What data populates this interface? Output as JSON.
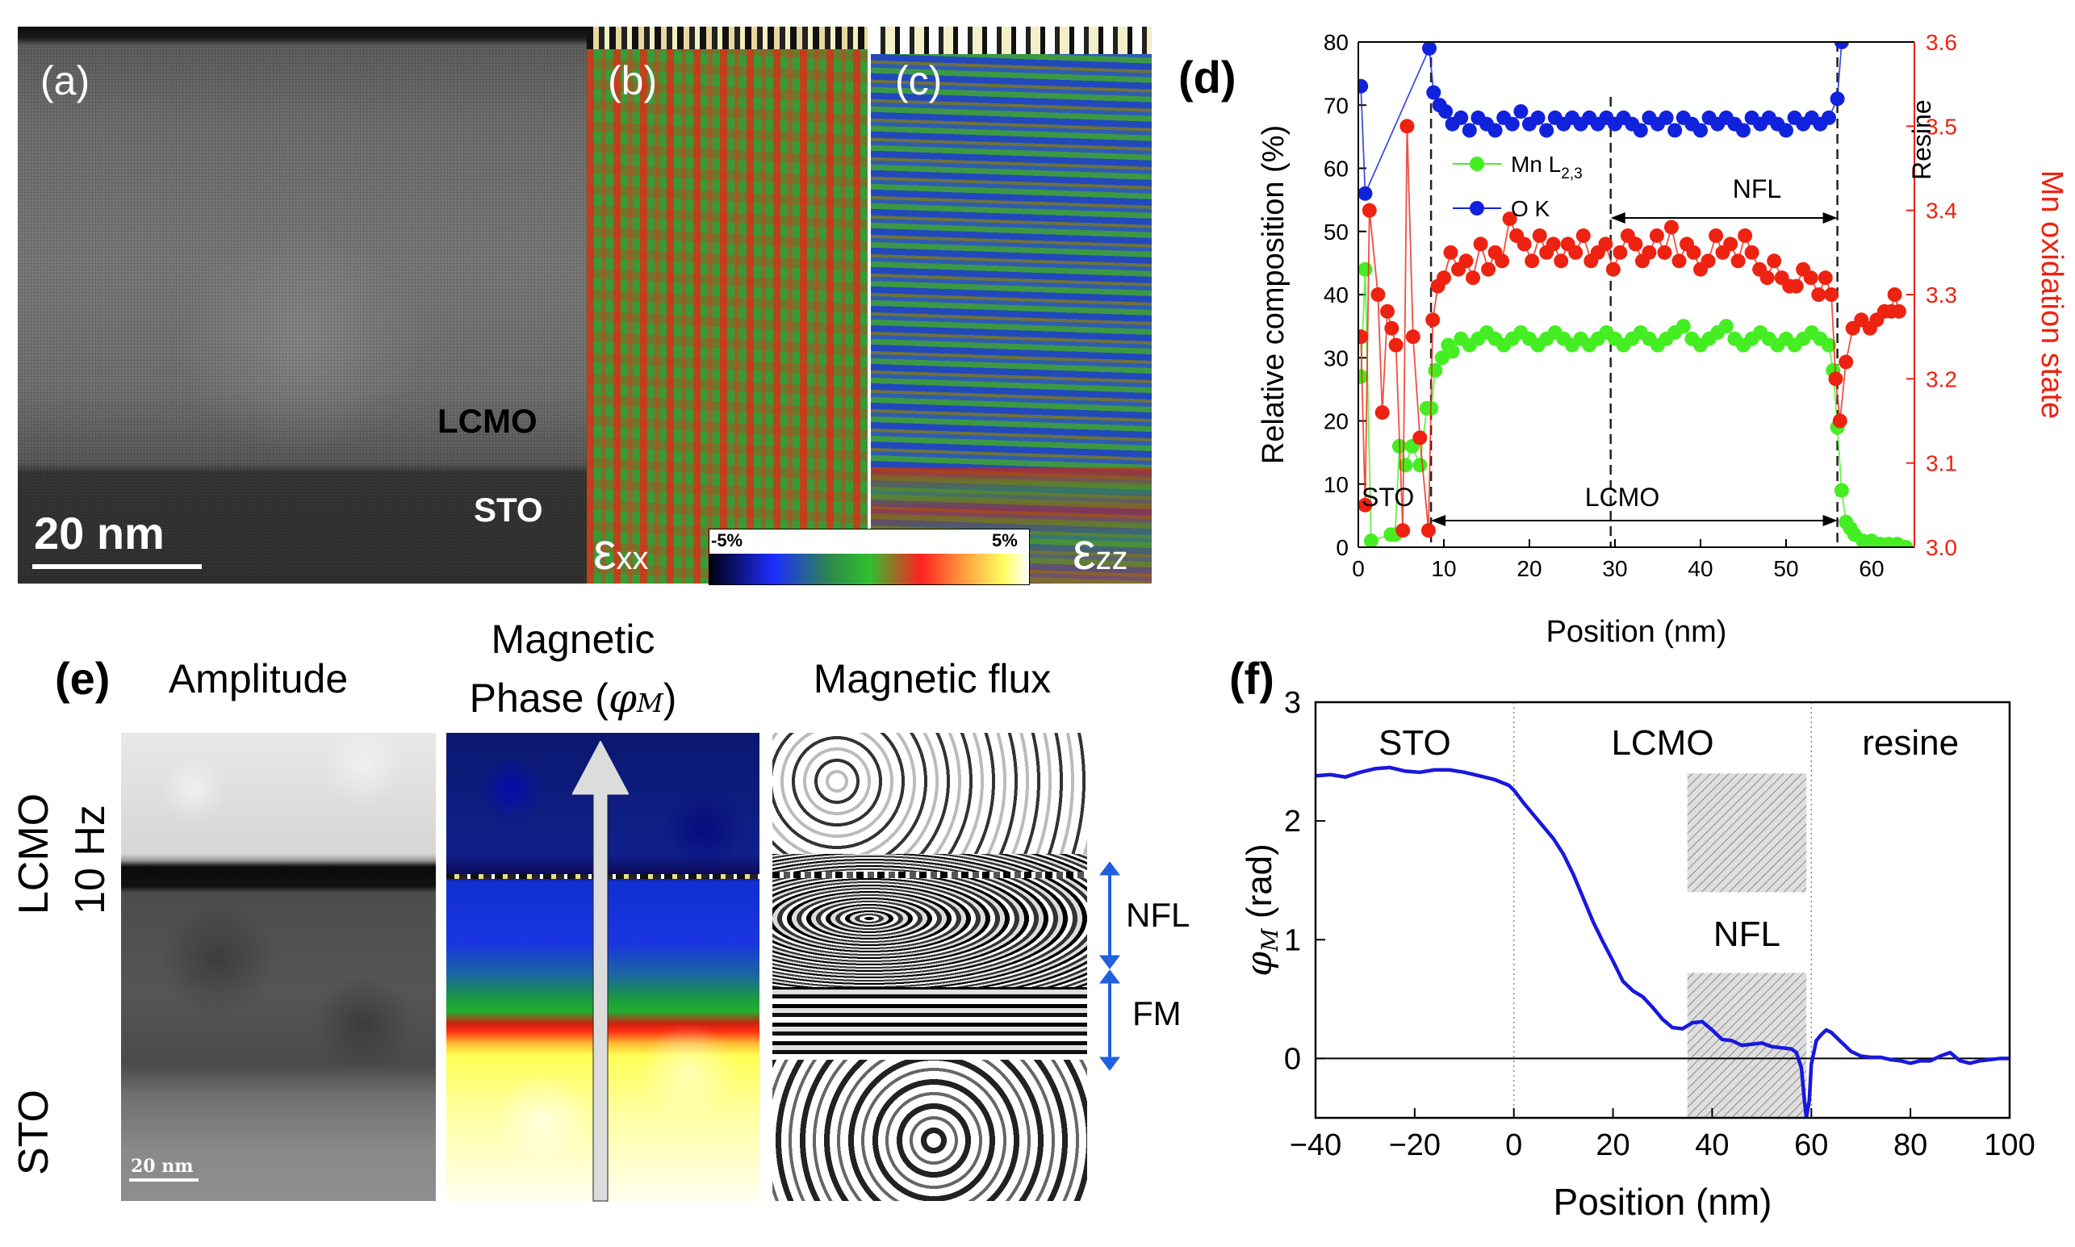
{
  "panel_a": {
    "letter": "(a)",
    "label_film": "LCMO",
    "label_sub": "STO",
    "scalebar": "20 nm"
  },
  "panel_b": {
    "letter": "(b)",
    "strain_symbol": "ε",
    "strain_sub": "xx"
  },
  "panel_c": {
    "letter": "(c)",
    "strain_symbol": "ε",
    "strain_sub": "zz"
  },
  "colorbar": {
    "min_label": "-5%",
    "max_label": "5%"
  },
  "panel_d_letter": "(d)",
  "panel_e": {
    "letter": "(e)",
    "amplitude_title": "Amplitude",
    "phase_title_line1": "Magnetic",
    "phase_title_line2": "Phase (",
    "phase_symbol": "φ",
    "phase_sub": "M",
    "phase_close": ")",
    "flux_title": "Magnetic flux",
    "side_label_lcmo": "LCMO",
    "side_label_hz": "10 Hz",
    "side_label_sto": "STO",
    "scalebar": "20 nm",
    "nfl_label": "NFL",
    "fm_label": "FM"
  },
  "panel_f_letter": "(f)",
  "chart_data": [
    {
      "id": "panel-d",
      "type": "scatter",
      "xlabel": "Position (nm)",
      "ylabel": "Relative composition (%)",
      "y2label": "Mn oxidation state",
      "xlim": [
        0,
        65
      ],
      "ylim": [
        0,
        80
      ],
      "y2lim": [
        3.0,
        3.6
      ],
      "xticks": [
        0,
        10,
        20,
        30,
        40,
        50,
        60
      ],
      "yticks": [
        0,
        10,
        20,
        30,
        40,
        50,
        60,
        70,
        80
      ],
      "y2ticks": [
        3.0,
        3.1,
        3.2,
        3.3,
        3.4,
        3.5,
        3.6
      ],
      "legend": [
        {
          "name": "Mn L",
          "sub": "2,3",
          "color": "#44ee22"
        },
        {
          "name": "O K",
          "sub": "",
          "color": "#1122dd"
        }
      ],
      "annotations": {
        "sto": "STO",
        "lcmo": "LCMO",
        "nfl": "NFL",
        "resine": "Resine",
        "dashed_x": [
          8.5,
          29.5,
          56
        ]
      },
      "series": [
        {
          "name": "O K",
          "axis": "left",
          "color": "#1122dd",
          "x": [
            0.3,
            0.8,
            8.3,
            8.8,
            9.5,
            10.2,
            11,
            12,
            13,
            14,
            15,
            16,
            17,
            18,
            19,
            20,
            21,
            22,
            23,
            24,
            25,
            26,
            27,
            28,
            29,
            30,
            31,
            32,
            33,
            34,
            35,
            36,
            37,
            38,
            39,
            40,
            41,
            42,
            43,
            44,
            45,
            46,
            47,
            48,
            49,
            50,
            51,
            52,
            53,
            54,
            55,
            56,
            56.5
          ],
          "y": [
            73,
            56,
            79,
            72,
            70,
            69,
            67,
            68,
            66,
            68,
            67,
            66,
            68,
            67,
            69,
            67,
            68,
            66,
            68,
            67,
            68,
            67,
            68,
            67,
            68,
            67,
            68,
            67,
            66,
            68,
            67,
            68,
            66,
            68,
            67,
            66,
            68,
            67,
            68,
            67,
            66,
            68,
            67,
            68,
            67,
            66,
            68,
            67,
            68,
            67,
            68,
            71,
            80
          ]
        },
        {
          "name": "Mn L2,3",
          "axis": "left",
          "color": "#44ee22",
          "x": [
            0.3,
            0.8,
            1.5,
            3.8,
            4.3,
            4.8,
            5.5,
            6.3,
            7.2,
            8,
            8.5,
            9,
            9.8,
            10.5,
            11,
            12,
            13,
            14,
            15,
            16,
            17,
            18,
            19,
            20,
            21,
            22,
            23,
            24,
            25,
            26,
            27,
            28,
            29,
            30,
            31,
            32,
            33,
            34,
            35,
            36,
            37,
            38,
            39,
            40,
            41,
            42,
            43,
            44,
            45,
            46,
            47,
            48,
            49,
            50,
            51,
            52,
            53,
            54,
            55,
            55.5,
            56,
            56.5,
            57,
            57.5,
            58,
            59,
            60,
            61,
            62,
            63,
            64
          ],
          "y": [
            27,
            44,
            1,
            2,
            2,
            16,
            13,
            16,
            13,
            22,
            22,
            28,
            30,
            32,
            31,
            33,
            32,
            33,
            34,
            33,
            32,
            33,
            34,
            33,
            32,
            33,
            34,
            33,
            32,
            33,
            32,
            33,
            34,
            33,
            32,
            33,
            34,
            33,
            32,
            33,
            34,
            35,
            33,
            32,
            33,
            34,
            35,
            33,
            32,
            33,
            34,
            33,
            32,
            33,
            32,
            33,
            34,
            33,
            32,
            28,
            19,
            9,
            4,
            3,
            2,
            1,
            1,
            0.5,
            0.5,
            0.5,
            0
          ]
        },
        {
          "name": "Mn oxidation state",
          "axis": "right",
          "color": "#ee2211",
          "x": [
            0.3,
            0.8,
            1.3,
            2.3,
            2.8,
            3.4,
            3.9,
            4.4,
            5.2,
            5.7,
            6.4,
            7.2,
            8.2,
            8.7,
            9.3,
            10,
            10.8,
            11.7,
            12.6,
            13.4,
            14.3,
            15.2,
            16,
            16.8,
            17.7,
            18.5,
            19.4,
            20.3,
            21.2,
            22,
            22.8,
            23.7,
            24.5,
            25.4,
            26.3,
            27.2,
            28,
            28.9,
            29.8,
            30.6,
            31.5,
            32.4,
            33.2,
            34,
            34.9,
            35.8,
            36.6,
            37.5,
            38.4,
            39.2,
            40,
            40.9,
            41.8,
            42.6,
            43.5,
            44.4,
            45.2,
            46,
            46.9,
            47.8,
            48.6,
            49.5,
            50.4,
            51.2,
            52,
            52.9,
            53.8,
            54.6,
            55.3,
            55.8,
            56.3,
            57,
            57.8,
            58.8,
            59.8,
            60.6,
            61.5,
            62.3,
            62.7,
            63.2
          ],
          "y": [
            3.25,
            3.05,
            3.4,
            3.3,
            3.16,
            3.28,
            3.26,
            3.24,
            3.02,
            3.5,
            3.25,
            3.13,
            3.02,
            3.27,
            3.31,
            3.32,
            3.35,
            3.33,
            3.34,
            3.32,
            3.36,
            3.33,
            3.35,
            3.34,
            3.39,
            3.37,
            3.36,
            3.34,
            3.37,
            3.35,
            3.36,
            3.34,
            3.36,
            3.35,
            3.37,
            3.34,
            3.35,
            3.36,
            3.33,
            3.35,
            3.37,
            3.36,
            3.34,
            3.35,
            3.37,
            3.35,
            3.38,
            3.34,
            3.36,
            3.35,
            3.33,
            3.34,
            3.37,
            3.35,
            3.36,
            3.34,
            3.37,
            3.35,
            3.33,
            3.32,
            3.34,
            3.32,
            3.31,
            3.31,
            3.33,
            3.32,
            3.3,
            3.32,
            3.3,
            3.2,
            3.15,
            3.22,
            3.26,
            3.27,
            3.26,
            3.27,
            3.28,
            3.28,
            3.3,
            3.28
          ]
        }
      ]
    },
    {
      "id": "panel-f",
      "type": "line",
      "xlabel": "Position (nm)",
      "ylabel_symbol": "φ",
      "ylabel_sub": "M",
      "ylabel_unit": "(rad)",
      "xlim": [
        -40,
        100
      ],
      "ylim": [
        -0.5,
        3
      ],
      "xticks": [
        -40,
        -20,
        0,
        20,
        40,
        60,
        80,
        100
      ],
      "yticks": [
        0,
        1,
        2,
        3
      ],
      "region_labels": [
        "STO",
        "LCMO",
        "resine"
      ],
      "region_bounds": [
        0,
        60
      ],
      "nfl_label": "NFL",
      "hatched_regions": [
        {
          "x0": 35,
          "x1": 59,
          "y0": 1.4,
          "y1": 2.4
        },
        {
          "x0": 35,
          "x1": 59,
          "y0": -0.5,
          "y1": 0.72
        }
      ],
      "series": [
        {
          "name": "φM",
          "color": "#1818dd",
          "x": [
            -40,
            -37,
            -34,
            -31,
            -28,
            -25,
            -22,
            -19,
            -16,
            -13,
            -10,
            -7,
            -4,
            -1,
            0,
            2,
            4,
            6,
            8,
            10,
            12,
            14,
            16,
            18,
            20,
            22,
            24,
            26,
            28,
            30,
            32,
            34,
            36,
            38,
            40,
            42,
            44,
            46,
            48,
            50,
            52,
            54,
            56,
            57,
            58,
            58.6,
            59,
            59.6,
            60,
            61,
            62,
            63,
            64,
            66,
            68,
            70,
            72,
            74,
            76,
            78,
            80,
            82,
            84,
            86,
            88,
            90,
            92,
            94,
            96,
            98,
            100
          ],
          "y": [
            2.38,
            2.39,
            2.37,
            2.41,
            2.44,
            2.45,
            2.42,
            2.41,
            2.43,
            2.43,
            2.41,
            2.38,
            2.35,
            2.3,
            2.26,
            2.15,
            2.05,
            1.95,
            1.85,
            1.72,
            1.55,
            1.35,
            1.15,
            0.98,
            0.82,
            0.65,
            0.57,
            0.52,
            0.43,
            0.33,
            0.26,
            0.25,
            0.3,
            0.31,
            0.24,
            0.16,
            0.15,
            0.11,
            0.12,
            0.13,
            0.1,
            0.09,
            0.08,
            0.05,
            -0.08,
            -0.35,
            -0.5,
            -0.35,
            -0.05,
            0.15,
            0.2,
            0.24,
            0.22,
            0.14,
            0.06,
            0.02,
            0.01,
            0.01,
            -0.01,
            -0.02,
            -0.04,
            -0.02,
            -0.02,
            0.02,
            0.05,
            -0.02,
            -0.04,
            -0.02,
            -0.01,
            0,
            0
          ]
        }
      ]
    }
  ]
}
